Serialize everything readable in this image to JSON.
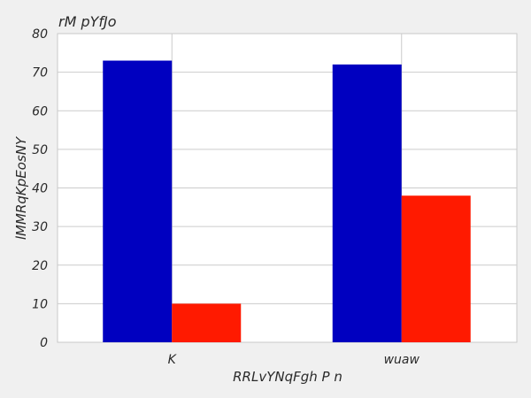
{
  "chart_data": {
    "type": "bar",
    "title": "rM pYfJo",
    "xlabel": "RRLvYNqFgh P n",
    "ylabel": "lMMRqKpEosNY",
    "categories": [
      "K",
      "wuaw"
    ],
    "series": [
      {
        "values": [
          73,
          72
        ],
        "color": "#0000c0"
      },
      {
        "values": [
          10,
          38
        ],
        "color": "#ff1a00"
      }
    ],
    "ylim": [
      0,
      80
    ],
    "yticks": [
      0,
      10,
      20,
      30,
      40,
      50,
      60,
      70,
      80
    ],
    "grid": true,
    "legend": "none"
  }
}
